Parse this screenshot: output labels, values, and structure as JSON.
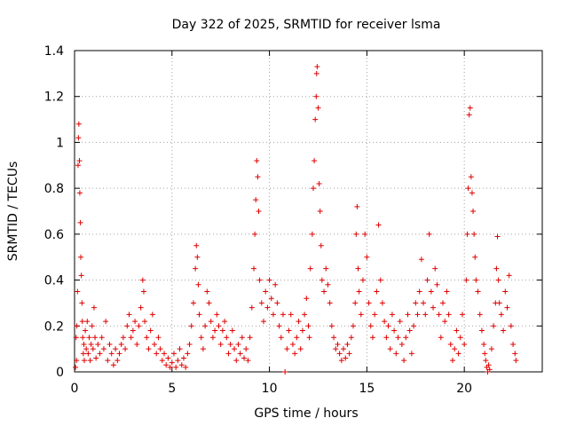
{
  "chart_data": {
    "type": "scatter",
    "title": "Day 322 of 2025, SRMTID for receiver lsma",
    "xlabel": "GPS time / hours",
    "ylabel": "SRMTID / TECUs",
    "xlim": [
      0,
      24
    ],
    "ylim": [
      0,
      1.4
    ],
    "xticks": [
      "0",
      "5",
      "10",
      "15",
      "20"
    ],
    "yticks": [
      "0",
      "0.2",
      "0.4",
      "0.6",
      "0.8",
      "1",
      "1.2",
      "1.4"
    ],
    "grid": true,
    "marker": "plus",
    "series": [
      {
        "name": "SRMTID",
        "color": "#e00000",
        "points": [
          [
            0.05,
            0.02
          ],
          [
            0.08,
            0.15
          ],
          [
            0.1,
            0.05
          ],
          [
            0.12,
            0.2
          ],
          [
            0.15,
            0.35
          ],
          [
            0.18,
            0.9
          ],
          [
            0.2,
            1.02
          ],
          [
            0.22,
            1.08
          ],
          [
            0.25,
            0.92
          ],
          [
            0.27,
            0.78
          ],
          [
            0.3,
            0.65
          ],
          [
            0.32,
            0.5
          ],
          [
            0.35,
            0.42
          ],
          [
            0.38,
            0.3
          ],
          [
            0.4,
            0.22
          ],
          [
            0.42,
            0.15
          ],
          [
            0.45,
            0.08
          ],
          [
            0.48,
            0.12
          ],
          [
            0.5,
            0.05
          ],
          [
            0.55,
            0.18
          ],
          [
            0.6,
            0.1
          ],
          [
            0.65,
            0.22
          ],
          [
            0.7,
            0.08
          ],
          [
            0.75,
            0.15
          ],
          [
            0.8,
            0.05
          ],
          [
            0.85,
            0.12
          ],
          [
            0.9,
            0.2
          ],
          [
            0.95,
            0.1
          ],
          [
            1.0,
            0.28
          ],
          [
            1.05,
            0.15
          ],
          [
            1.1,
            0.06
          ],
          [
            1.2,
            0.12
          ],
          [
            1.3,
            0.08
          ],
          [
            1.4,
            0.15
          ],
          [
            1.5,
            0.1
          ],
          [
            1.6,
            0.22
          ],
          [
            1.7,
            0.05
          ],
          [
            1.8,
            0.12
          ],
          [
            1.9,
            0.08
          ],
          [
            2.0,
            0.03
          ],
          [
            2.1,
            0.1
          ],
          [
            2.2,
            0.05
          ],
          [
            2.3,
            0.08
          ],
          [
            2.4,
            0.12
          ],
          [
            2.5,
            0.15
          ],
          [
            2.6,
            0.1
          ],
          [
            2.7,
            0.2
          ],
          [
            2.8,
            0.25
          ],
          [
            2.9,
            0.15
          ],
          [
            3.0,
            0.18
          ],
          [
            3.1,
            0.22
          ],
          [
            3.2,
            0.12
          ],
          [
            3.3,
            0.2
          ],
          [
            3.4,
            0.28
          ],
          [
            3.5,
            0.4
          ],
          [
            3.55,
            0.35
          ],
          [
            3.6,
            0.22
          ],
          [
            3.7,
            0.15
          ],
          [
            3.8,
            0.1
          ],
          [
            3.9,
            0.18
          ],
          [
            4.0,
            0.25
          ],
          [
            4.1,
            0.12
          ],
          [
            4.2,
            0.08
          ],
          [
            4.3,
            0.15
          ],
          [
            4.4,
            0.1
          ],
          [
            4.5,
            0.05
          ],
          [
            4.6,
            0.08
          ],
          [
            4.7,
            0.03
          ],
          [
            4.8,
            0.06
          ],
          [
            4.9,
            0.02
          ],
          [
            5.0,
            0.04
          ],
          [
            5.1,
            0.08
          ],
          [
            5.2,
            0.02
          ],
          [
            5.3,
            0.05
          ],
          [
            5.4,
            0.1
          ],
          [
            5.5,
            0.03
          ],
          [
            5.6,
            0.06
          ],
          [
            5.7,
            0.02
          ],
          [
            5.8,
            0.08
          ],
          [
            5.9,
            0.12
          ],
          [
            6.0,
            0.2
          ],
          [
            6.1,
            0.3
          ],
          [
            6.2,
            0.45
          ],
          [
            6.25,
            0.55
          ],
          [
            6.3,
            0.5
          ],
          [
            6.35,
            0.38
          ],
          [
            6.4,
            0.25
          ],
          [
            6.5,
            0.15
          ],
          [
            6.6,
            0.1
          ],
          [
            6.7,
            0.2
          ],
          [
            6.8,
            0.35
          ],
          [
            6.9,
            0.3
          ],
          [
            7.0,
            0.22
          ],
          [
            7.1,
            0.15
          ],
          [
            7.2,
            0.18
          ],
          [
            7.3,
            0.25
          ],
          [
            7.4,
            0.2
          ],
          [
            7.5,
            0.12
          ],
          [
            7.6,
            0.18
          ],
          [
            7.7,
            0.22
          ],
          [
            7.8,
            0.15
          ],
          [
            7.9,
            0.08
          ],
          [
            8.0,
            0.12
          ],
          [
            8.1,
            0.18
          ],
          [
            8.2,
            0.1
          ],
          [
            8.3,
            0.05
          ],
          [
            8.4,
            0.12
          ],
          [
            8.5,
            0.08
          ],
          [
            8.6,
            0.15
          ],
          [
            8.7,
            0.06
          ],
          [
            8.8,
            0.1
          ],
          [
            8.9,
            0.05
          ],
          [
            9.0,
            0.15
          ],
          [
            9.1,
            0.28
          ],
          [
            9.2,
            0.45
          ],
          [
            9.25,
            0.6
          ],
          [
            9.3,
            0.75
          ],
          [
            9.35,
            0.92
          ],
          [
            9.4,
            0.85
          ],
          [
            9.45,
            0.7
          ],
          [
            9.5,
            0.4
          ],
          [
            9.6,
            0.3
          ],
          [
            9.7,
            0.22
          ],
          [
            9.8,
            0.35
          ],
          [
            9.9,
            0.28
          ],
          [
            10.0,
            0.4
          ],
          [
            10.1,
            0.32
          ],
          [
            10.2,
            0.25
          ],
          [
            10.3,
            0.38
          ],
          [
            10.4,
            0.3
          ],
          [
            10.5,
            0.2
          ],
          [
            10.6,
            0.15
          ],
          [
            10.7,
            0.25
          ],
          [
            10.8,
            0.0
          ],
          [
            10.9,
            0.1
          ],
          [
            11.0,
            0.18
          ],
          [
            11.1,
            0.25
          ],
          [
            11.2,
            0.12
          ],
          [
            11.3,
            0.08
          ],
          [
            11.4,
            0.15
          ],
          [
            11.5,
            0.22
          ],
          [
            11.6,
            0.1
          ],
          [
            11.7,
            0.18
          ],
          [
            11.8,
            0.25
          ],
          [
            11.9,
            0.32
          ],
          [
            12.0,
            0.2
          ],
          [
            12.05,
            0.15
          ],
          [
            12.1,
            0.45
          ],
          [
            12.2,
            0.6
          ],
          [
            12.25,
            0.8
          ],
          [
            12.3,
            0.92
          ],
          [
            12.35,
            1.1
          ],
          [
            12.4,
            1.2
          ],
          [
            12.42,
            1.3
          ],
          [
            12.45,
            1.33
          ],
          [
            12.5,
            1.15
          ],
          [
            12.55,
            0.82
          ],
          [
            12.6,
            0.7
          ],
          [
            12.65,
            0.55
          ],
          [
            12.7,
            0.4
          ],
          [
            12.8,
            0.35
          ],
          [
            12.9,
            0.45
          ],
          [
            13.0,
            0.38
          ],
          [
            13.1,
            0.3
          ],
          [
            13.2,
            0.2
          ],
          [
            13.3,
            0.15
          ],
          [
            13.4,
            0.1
          ],
          [
            13.5,
            0.12
          ],
          [
            13.6,
            0.08
          ],
          [
            13.7,
            0.05
          ],
          [
            13.8,
            0.1
          ],
          [
            13.9,
            0.06
          ],
          [
            14.0,
            0.12
          ],
          [
            14.1,
            0.08
          ],
          [
            14.2,
            0.15
          ],
          [
            14.3,
            0.2
          ],
          [
            14.4,
            0.3
          ],
          [
            14.45,
            0.6
          ],
          [
            14.5,
            0.72
          ],
          [
            14.55,
            0.45
          ],
          [
            14.6,
            0.35
          ],
          [
            14.7,
            0.25
          ],
          [
            14.8,
            0.4
          ],
          [
            14.9,
            0.6
          ],
          [
            15.0,
            0.5
          ],
          [
            15.1,
            0.3
          ],
          [
            15.2,
            0.2
          ],
          [
            15.3,
            0.15
          ],
          [
            15.4,
            0.25
          ],
          [
            15.5,
            0.35
          ],
          [
            15.6,
            0.64
          ],
          [
            15.7,
            0.4
          ],
          [
            15.8,
            0.3
          ],
          [
            15.9,
            0.22
          ],
          [
            16.0,
            0.15
          ],
          [
            16.1,
            0.2
          ],
          [
            16.2,
            0.1
          ],
          [
            16.3,
            0.25
          ],
          [
            16.4,
            0.18
          ],
          [
            16.5,
            0.08
          ],
          [
            16.6,
            0.15
          ],
          [
            16.7,
            0.22
          ],
          [
            16.8,
            0.12
          ],
          [
            16.9,
            0.05
          ],
          [
            17.0,
            0.15
          ],
          [
            17.1,
            0.25
          ],
          [
            17.2,
            0.18
          ],
          [
            17.3,
            0.08
          ],
          [
            17.4,
            0.2
          ],
          [
            17.5,
            0.3
          ],
          [
            17.6,
            0.25
          ],
          [
            17.7,
            0.35
          ],
          [
            17.8,
            0.49
          ],
          [
            17.9,
            0.3
          ],
          [
            18.0,
            0.25
          ],
          [
            18.1,
            0.4
          ],
          [
            18.2,
            0.6
          ],
          [
            18.3,
            0.35
          ],
          [
            18.4,
            0.28
          ],
          [
            18.5,
            0.45
          ],
          [
            18.6,
            0.38
          ],
          [
            18.7,
            0.25
          ],
          [
            18.8,
            0.15
          ],
          [
            18.9,
            0.3
          ],
          [
            19.0,
            0.22
          ],
          [
            19.1,
            0.35
          ],
          [
            19.2,
            0.25
          ],
          [
            19.3,
            0.12
          ],
          [
            19.4,
            0.05
          ],
          [
            19.5,
            0.1
          ],
          [
            19.6,
            0.18
          ],
          [
            19.7,
            0.08
          ],
          [
            19.8,
            0.15
          ],
          [
            19.9,
            0.25
          ],
          [
            20.0,
            0.12
          ],
          [
            20.1,
            0.4
          ],
          [
            20.15,
            0.6
          ],
          [
            20.2,
            0.8
          ],
          [
            20.25,
            1.12
          ],
          [
            20.3,
            1.15
          ],
          [
            20.35,
            0.85
          ],
          [
            20.4,
            0.78
          ],
          [
            20.45,
            0.7
          ],
          [
            20.5,
            0.6
          ],
          [
            20.55,
            0.5
          ],
          [
            20.6,
            0.4
          ],
          [
            20.7,
            0.35
          ],
          [
            20.8,
            0.25
          ],
          [
            20.9,
            0.18
          ],
          [
            21.0,
            0.12
          ],
          [
            21.05,
            0.08
          ],
          [
            21.1,
            0.05
          ],
          [
            21.15,
            0.02
          ],
          [
            21.2,
            0.0
          ],
          [
            21.25,
            0.03
          ],
          [
            21.3,
            0.01
          ],
          [
            21.4,
            0.1
          ],
          [
            21.5,
            0.2
          ],
          [
            21.6,
            0.3
          ],
          [
            21.65,
            0.45
          ],
          [
            21.7,
            0.59
          ],
          [
            21.75,
            0.4
          ],
          [
            21.8,
            0.3
          ],
          [
            21.9,
            0.25
          ],
          [
            22.0,
            0.18
          ],
          [
            22.1,
            0.35
          ],
          [
            22.2,
            0.28
          ],
          [
            22.3,
            0.42
          ],
          [
            22.4,
            0.2
          ],
          [
            22.5,
            0.12
          ],
          [
            22.6,
            0.08
          ],
          [
            22.65,
            0.05
          ]
        ]
      }
    ]
  }
}
